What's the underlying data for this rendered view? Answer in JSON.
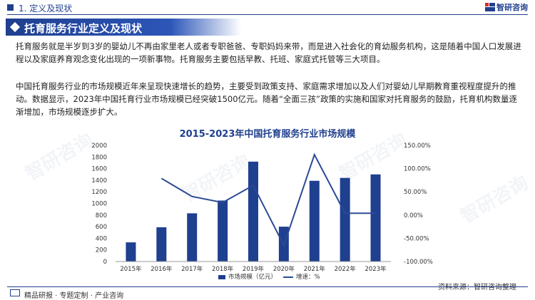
{
  "header": {
    "section_label": "1. 定义及现状",
    "brand": "智研咨询"
  },
  "banner": {
    "title": "托育服务行业定义及现状"
  },
  "paragraphs": [
    "托育服务就是半岁到3岁的婴幼儿不再由家里老人或者专职爸爸、专职妈妈来带，而是进入社会化的育幼服务机构，这是随着中国人口发展进程以及家庭养育观念变化出现的一项新事物。托育服务主要包括早教、托班、家庭式托管等三大项目。",
    "中国托育服务行业的市场规模近年来呈现快速增长的趋势，主要受到政策支持、家庭需求增加以及人们对婴幼儿早期教育重视程度提升的推动。数据显示，2023年中国托育行业市场规模已经突破1500亿元。随着“全面三孩”政策的实施和国家对托育服务的鼓励，托育机构数量逐渐增加，市场规模逐步扩大。"
  ],
  "chart_data": {
    "type": "bar",
    "title": "2015-2023年中国托育服务行业市场规模",
    "categories": [
      "2015年",
      "2016年",
      "2017年",
      "2018年",
      "2019年",
      "2020年",
      "2021年",
      "2022年",
      "2023年"
    ],
    "series": [
      {
        "name": "市场规模（亿元）",
        "type": "bar",
        "axis": "left",
        "values": [
          330,
          590,
          830,
          1050,
          1720,
          600,
          1390,
          1440,
          1500
        ]
      },
      {
        "name": "增速：%",
        "type": "line",
        "axis": "right",
        "values": [
          null,
          79,
          40,
          27,
          64,
          -65,
          130,
          4,
          4
        ]
      }
    ],
    "ylim_left": [
      0,
      2000
    ],
    "yticks_left": [
      "0",
      "200",
      "400",
      "600",
      "800",
      "1000",
      "1200",
      "1400",
      "1600",
      "1800",
      "2000"
    ],
    "ylim_right": [
      -100,
      150
    ],
    "yticks_right": [
      "-100.00%",
      "-50.00%",
      "0.00%",
      "50.00%",
      "100.00%",
      "150.00%"
    ],
    "legend_position": "bottom",
    "grid": false,
    "colors": {
      "bar": "#1f3f8f",
      "line": "#2b4a94"
    }
  },
  "source": "资料来源：智研咨询整理",
  "footer": {
    "text": "精品研报 · 专题定制 · 产业咨询"
  }
}
